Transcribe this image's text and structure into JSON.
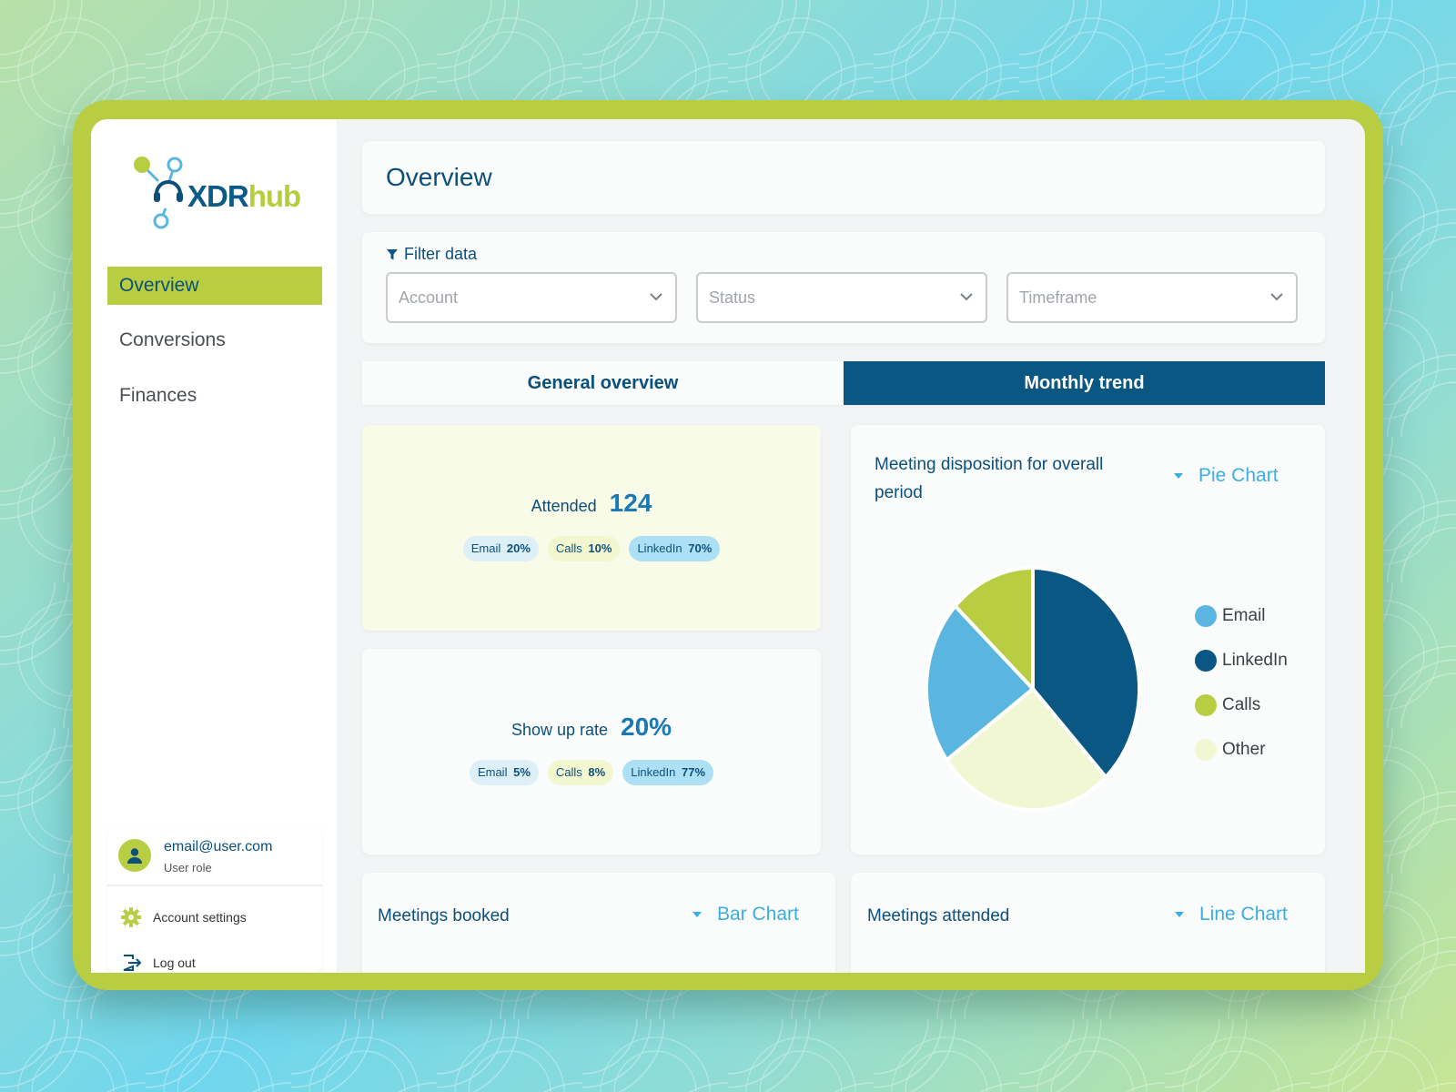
{
  "brand": {
    "part1": "XDR",
    "part2": "hub"
  },
  "sidebar": {
    "items": [
      {
        "label": "Overview",
        "active": true
      },
      {
        "label": "Conversions",
        "active": false
      },
      {
        "label": "Finances",
        "active": false
      }
    ]
  },
  "user": {
    "email": "email@user.com",
    "role": "User role",
    "settings_label": "Account settings",
    "logout_label": "Log out"
  },
  "header": {
    "title": "Overview"
  },
  "filters": {
    "label": "Filter data",
    "account_placeholder": "Account",
    "status_placeholder": "Status",
    "timeframe_placeholder": "Timeframe"
  },
  "tabs": {
    "general": "General overview",
    "monthly": "Monthly trend",
    "active": "monthly"
  },
  "attended": {
    "label": "Attended",
    "value": "124",
    "pills": [
      {
        "name": "Email",
        "value": "20%"
      },
      {
        "name": "Calls",
        "value": "10%"
      },
      {
        "name": "LinkedIn",
        "value": "70%"
      }
    ]
  },
  "showup": {
    "label": "Show up rate",
    "value": "20%",
    "pills": [
      {
        "name": "Email",
        "value": "5%"
      },
      {
        "name": "Calls",
        "value": "8%"
      },
      {
        "name": "LinkedIn",
        "value": "77%"
      }
    ]
  },
  "disposition": {
    "title": "Meeting disposition for overall period",
    "chart_type": "Pie Chart"
  },
  "booked": {
    "title": "Meetings booked",
    "chart_type": "Bar Chart"
  },
  "attended_chart": {
    "title": "Meetings attended",
    "chart_type": "Line Chart"
  },
  "colors": {
    "navy": "#0b5783",
    "lime": "#b9cd43",
    "light_blue": "#5ab6e0",
    "cream": "#f1f7d3"
  },
  "chart_data": {
    "type": "pie",
    "labels": [
      "LinkedIn",
      "Other",
      "Email",
      "Calls"
    ],
    "values": [
      38,
      27,
      22,
      13
    ],
    "colors": [
      "#0b5783",
      "#f1f7d3",
      "#5ab6e0",
      "#b9cd43"
    ],
    "legend": [
      "Email",
      "LinkedIn",
      "Calls",
      "Other"
    ],
    "legend_colors": [
      "#5ab6e0",
      "#0b5783",
      "#b9cd43",
      "#f1f7d3"
    ],
    "legend_position": "right"
  }
}
